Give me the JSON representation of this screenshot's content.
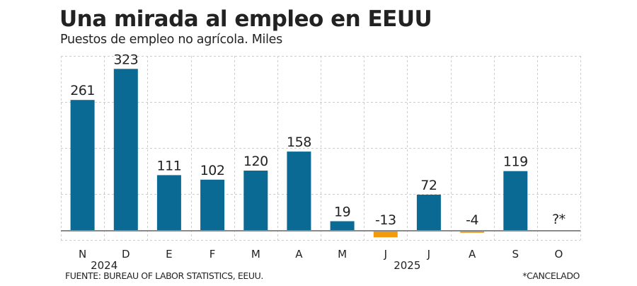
{
  "chart_data": {
    "type": "bar",
    "title": "Una mirada al empleo en EEUU",
    "subtitle": "Puestos de empleo no agrícola. Miles",
    "categories": [
      "N",
      "D",
      "E",
      "F",
      "M",
      "A",
      "M",
      "J",
      "J",
      "A",
      "S",
      "O"
    ],
    "values": [
      261,
      323,
      111,
      102,
      120,
      158,
      19,
      -13,
      72,
      -4,
      119,
      null
    ],
    "value_labels": [
      "261",
      "323",
      "111",
      "102",
      "120",
      "158",
      "19",
      "-13",
      "72",
      "-4",
      "119",
      "?*"
    ],
    "year_labels": [
      {
        "label": "2024",
        "between": [
          0,
          1
        ]
      },
      {
        "label": "2025",
        "between": [
          7,
          8
        ]
      }
    ],
    "xlabel": "",
    "ylabel": "",
    "ylim": [
      -18,
      350
    ],
    "grid": true,
    "legend": "none",
    "colors": {
      "positive": "#0A6A94",
      "negative": "#F39A0E",
      "baseline": "#8A8A8A",
      "grid": "#CCCCCC",
      "text": "#222222"
    }
  },
  "footer": {
    "source": "FUENTE: BUREAU OF LABOR STATISTICS, EEUU.",
    "note": "*CANCELADO"
  }
}
